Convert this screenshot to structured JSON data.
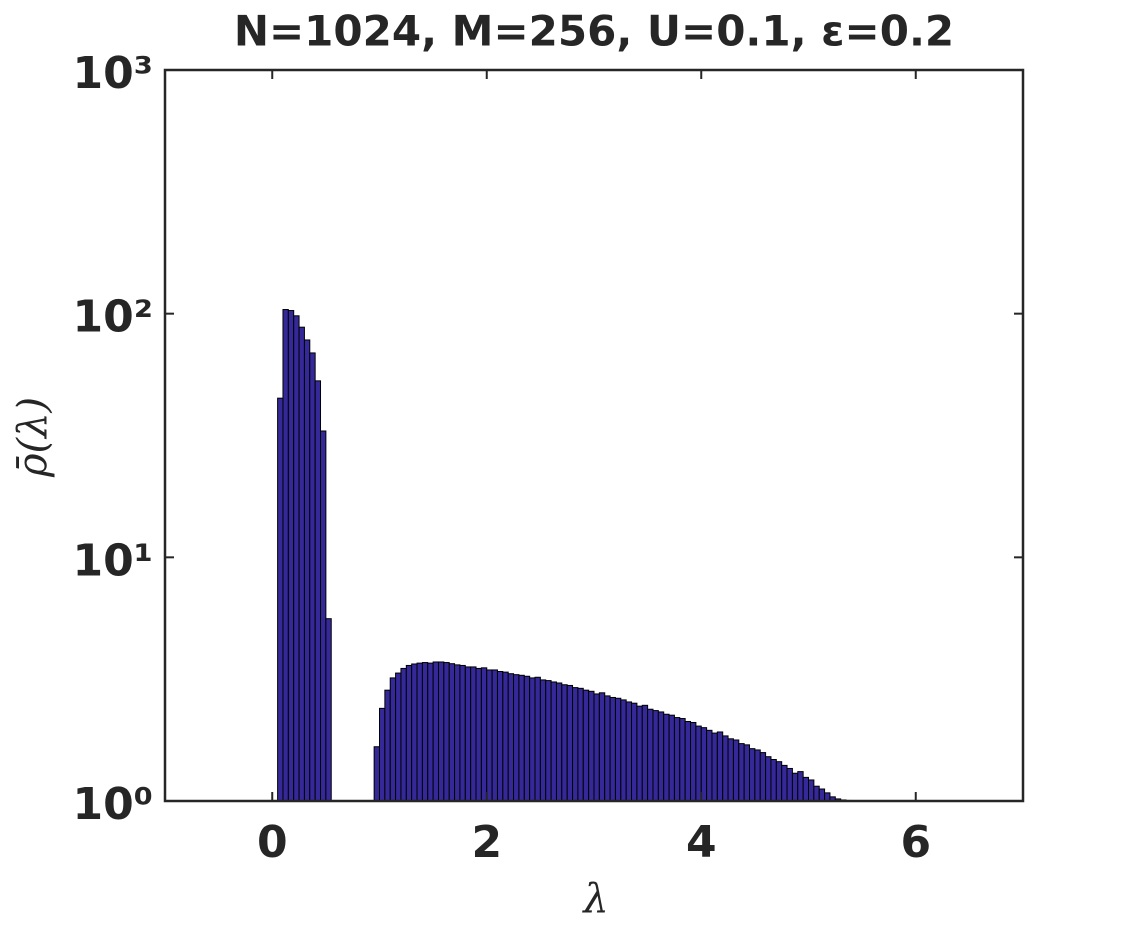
{
  "chart_data": {
    "type": "histogram",
    "title": "N=1024, M=256, U=0.1, ε=0.2",
    "xlabel": "λ",
    "ylabel": "ρ̄(λ)",
    "bins": [
      0.05,
      0.1,
      0.15,
      0.2,
      0.25,
      0.3,
      0.35,
      0.4,
      0.45,
      0.5,
      0.55,
      0.6,
      0.65,
      0.7,
      0.75,
      0.8,
      0.85,
      0.9,
      0.95,
      1.0,
      1.05,
      1.1,
      1.15,
      1.2,
      1.25,
      1.3,
      1.35,
      1.4,
      1.45,
      1.5,
      1.55,
      1.6,
      1.65,
      1.7,
      1.75,
      1.8,
      1.85,
      1.9,
      1.95,
      2.0,
      2.05,
      2.1,
      2.15,
      2.2,
      2.25,
      2.3,
      2.35,
      2.4,
      2.45,
      2.5,
      2.55,
      2.6,
      2.65,
      2.7,
      2.75,
      2.8,
      2.85,
      2.9,
      2.95,
      3.0,
      3.05,
      3.1,
      3.15,
      3.2,
      3.25,
      3.3,
      3.35,
      3.4,
      3.45,
      3.5,
      3.55,
      3.6,
      3.65,
      3.7,
      3.75,
      3.8,
      3.85,
      3.9,
      3.95,
      4.0,
      4.05,
      4.1,
      4.15,
      4.2,
      4.25,
      4.3,
      4.35,
      4.4,
      4.45,
      4.5,
      4.55,
      4.6,
      4.65,
      4.7,
      4.75,
      4.8,
      4.85,
      4.9,
      4.95,
      5.0,
      5.05,
      5.1,
      5.15,
      5.2,
      5.25,
      5.3,
      5.35,
      5.4,
      5.45
    ],
    "values": [
      45,
      104,
      103,
      98,
      88,
      78,
      69,
      53,
      33,
      5.6,
      0,
      0,
      0,
      0,
      0,
      0,
      0,
      0,
      1.67,
      2.4,
      2.85,
      3.2,
      3.35,
      3.5,
      3.6,
      3.65,
      3.68,
      3.7,
      3.68,
      3.72,
      3.72,
      3.7,
      3.66,
      3.62,
      3.6,
      3.55,
      3.55,
      3.5,
      3.52,
      3.45,
      3.45,
      3.4,
      3.38,
      3.33,
      3.3,
      3.28,
      3.25,
      3.2,
      3.22,
      3.14,
      3.12,
      3.08,
      3.05,
      3.0,
      2.98,
      2.92,
      2.9,
      2.85,
      2.82,
      2.75,
      2.78,
      2.7,
      2.66,
      2.64,
      2.6,
      2.55,
      2.52,
      2.45,
      2.47,
      2.38,
      2.35,
      2.32,
      2.27,
      2.25,
      2.2,
      2.18,
      2.12,
      2.1,
      2.03,
      2.0,
      1.95,
      1.9,
      1.92,
      1.85,
      1.8,
      1.78,
      1.72,
      1.7,
      1.64,
      1.62,
      1.58,
      1.52,
      1.48,
      1.45,
      1.4,
      1.36,
      1.3,
      1.32,
      1.25,
      1.22,
      1.15,
      1.12,
      1.08,
      1.04,
      1.02,
      1.01,
      1.005,
      1.0
    ],
    "color": "#35299a",
    "log_y": true,
    "xlim": [
      -1,
      7
    ],
    "xticks": [
      0,
      2,
      4,
      6
    ],
    "ylim": [
      1,
      1000
    ],
    "yticks": [
      {
        "value": 1,
        "label": "10⁰"
      },
      {
        "value": 10,
        "label": "10¹"
      },
      {
        "value": 100,
        "label": "10²"
      },
      {
        "value": 1000,
        "label": "10³"
      }
    ]
  }
}
